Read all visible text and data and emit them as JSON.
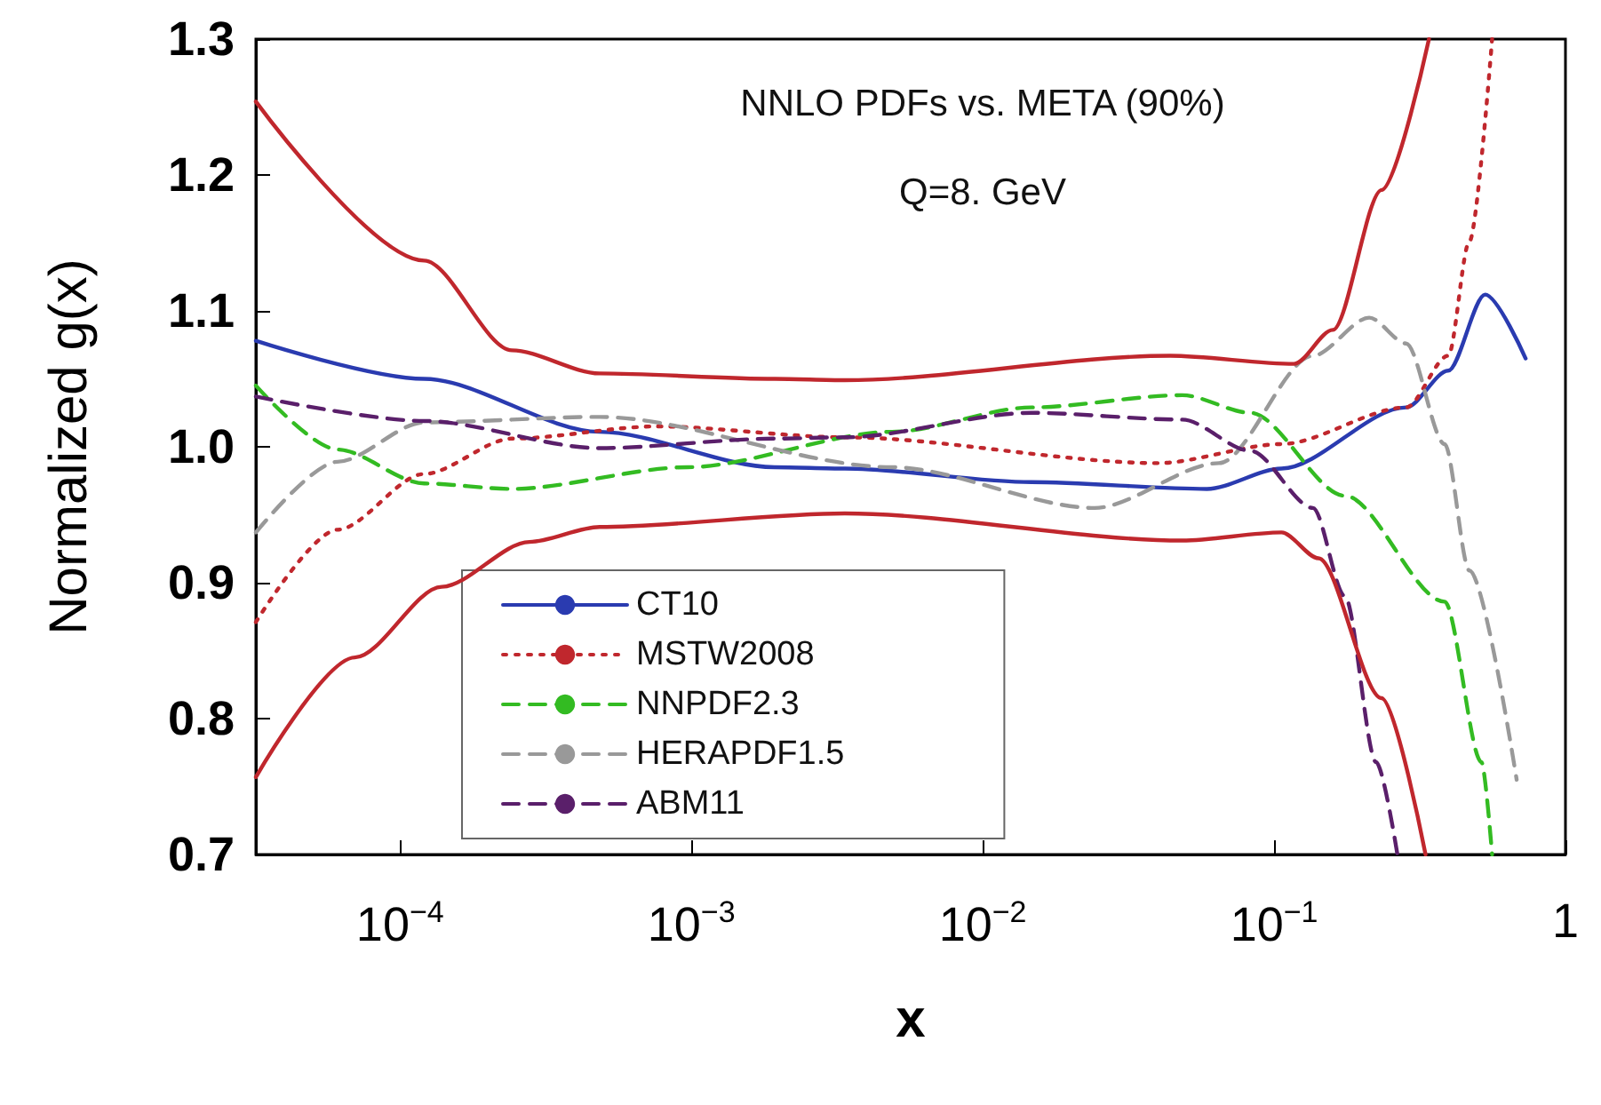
{
  "chart_data": {
    "type": "line",
    "title": "NNLO PDFs vs. META (90%)",
    "subtitle": "Q=8. GeV",
    "xlabel": "x",
    "ylabel": "Normalized g(x)",
    "log": "x",
    "grid": false,
    "marker": "none",
    "legend": "bottom left",
    "xlim": [
      3.2e-05,
      1
    ],
    "xticks": [
      {
        "value": 0.0001,
        "label": "10$^{−4}$"
      },
      {
        "value": 0.001,
        "label": "10$^{−3}$"
      },
      {
        "value": 0.01,
        "label": "10$^{−2}$"
      },
      {
        "value": 0.1,
        "label": "10$^{−1}$"
      },
      1
    ],
    "ylim": [
      0.7,
      1.3
    ],
    "yticks": [
      0.7,
      0.8,
      0.9,
      {
        "value": 1,
        "label": "1.0"
      },
      1.1,
      1.2,
      1.3
    ],
    "series": [
      {
        "name": "CT10",
        "color": "#2a3bb0",
        "line_style": "solid",
        "x": [
          3.2e-05,
          0.000121,
          0.000484,
          0.00193,
          0.00336,
          0.0147,
          0.0588,
          0.106,
          0.284,
          0.396,
          0.53,
          0.73
        ],
        "values": [
          1.078,
          1.05,
          1.011,
          0.985,
          0.984,
          0.974,
          0.969,
          0.984,
          1.029,
          1.056,
          1.112,
          1.065
        ]
      },
      {
        "name": "MSTW2008",
        "color": "#c0272d",
        "line_style": "dotted",
        "x": [
          3.2e-05,
          6.1e-05,
          0.000121,
          0.000242,
          0.00076,
          0.00336,
          0.0399,
          0.106,
          0.284,
          0.396,
          0.468,
          0.56
        ],
        "values": [
          0.871,
          0.939,
          0.98,
          1.006,
          1.015,
          1.007,
          0.988,
          1.002,
          1.029,
          1.067,
          1.151,
          1.3
        ]
      },
      {
        "name": "NNPDF2.3",
        "color": "#33bb22",
        "line_style": "dashed",
        "x": [
          3.2e-05,
          6.1e-05,
          0.000121,
          0.000242,
          0.00097,
          0.00488,
          0.0147,
          0.0484,
          0.083,
          0.175,
          0.385,
          0.515,
          0.56
        ],
        "values": [
          1.045,
          0.998,
          0.973,
          0.969,
          0.985,
          1.011,
          1.029,
          1.038,
          1.025,
          0.964,
          0.886,
          0.768,
          0.7
        ]
      },
      {
        "name": "HERAPDF1.5",
        "color": "#999999",
        "line_style": "dashed",
        "x": [
          3.2e-05,
          6.1e-05,
          0.000121,
          0.000484,
          0.00488,
          0.0242,
          0.0647,
          0.136,
          0.212,
          0.284,
          0.385,
          0.468,
          0.68
        ],
        "values": [
          0.937,
          0.989,
          1.018,
          1.022,
          0.985,
          0.955,
          0.988,
          1.067,
          1.095,
          1.076,
          1.002,
          0.909,
          0.755
        ]
      },
      {
        "name": "ABM11",
        "color": "#5a1f6a",
        "line_style": "dashed",
        "x": [
          3.2e-05,
          0.000121,
          0.000484,
          0.00193,
          0.00336,
          0.0147,
          0.0484,
          0.083,
          0.136,
          0.175,
          0.224,
          0.265
        ],
        "values": [
          1.037,
          1.019,
          0.999,
          1.006,
          1.007,
          1.025,
          1.02,
          0.997,
          0.955,
          0.89,
          0.768,
          0.7
        ]
      },
      {
        "color": "#c0272d",
        "line_style": "solid",
        "x": [
          3.2e-05,
          0.000121,
          0.000242,
          0.000484,
          0.00193,
          0.00336,
          0.044,
          0.117,
          0.159,
          0.234,
          0.34
        ],
        "values": [
          1.254,
          1.137,
          1.071,
          1.054,
          1.05,
          1.049,
          1.067,
          1.061,
          1.086,
          1.189,
          1.3
        ]
      },
      {
        "color": "#c0272d",
        "line_style": "solid",
        "x": [
          3.2e-05,
          7e-05,
          0.000139,
          0.000278,
          0.000484,
          0.00336,
          0.0484,
          0.106,
          0.142,
          0.234,
          0.331
        ],
        "values": [
          0.757,
          0.845,
          0.897,
          0.93,
          0.941,
          0.951,
          0.931,
          0.937,
          0.918,
          0.815,
          0.7
        ]
      }
    ]
  }
}
